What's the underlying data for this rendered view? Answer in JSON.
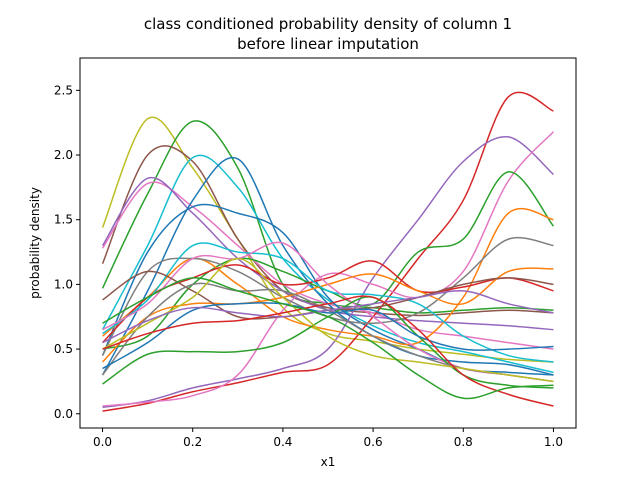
{
  "chart_data": {
    "type": "line",
    "title": [
      "class conditioned probability density of column 1",
      "before linear imputation"
    ],
    "xlabel": "x1",
    "ylabel": "probability density",
    "xlim": [
      -0.05,
      1.05
    ],
    "ylim": [
      -0.11,
      2.75
    ],
    "xticks": [
      0.0,
      0.2,
      0.4,
      0.6,
      0.8,
      1.0
    ],
    "xtick_labels": [
      "0.0",
      "0.2",
      "0.4",
      "0.6",
      "0.8",
      "1.0"
    ],
    "yticks": [
      0.0,
      0.5,
      1.0,
      1.5,
      2.0,
      2.5
    ],
    "ytick_labels": [
      "0.0",
      "0.5",
      "1.0",
      "1.5",
      "2.0",
      "2.5"
    ],
    "grid": false,
    "legend": "none",
    "x": [
      0.0,
      0.1,
      0.2,
      0.3,
      0.4,
      0.5,
      0.6,
      0.7,
      0.8,
      0.9,
      1.0
    ],
    "series": [
      {
        "color": "#bcbd22",
        "values": [
          1.44,
          2.28,
          1.9,
          1.35,
          0.82,
          0.62,
          0.56,
          0.5,
          0.46,
          0.42,
          0.4
        ]
      },
      {
        "color": "#2ca02c",
        "values": [
          0.97,
          1.7,
          2.26,
          1.9,
          1.0,
          0.85,
          0.82,
          0.78,
          0.8,
          0.82,
          0.8
        ]
      },
      {
        "color": "#8c564b",
        "values": [
          1.16,
          2.0,
          1.95,
          1.35,
          0.95,
          0.82,
          0.78,
          0.76,
          0.78,
          0.8,
          0.78
        ]
      },
      {
        "color": "#17becf",
        "values": [
          0.65,
          1.3,
          1.98,
          1.75,
          1.2,
          0.88,
          0.68,
          0.55,
          0.48,
          0.4,
          0.32
        ]
      },
      {
        "color": "#e377c2",
        "values": [
          1.28,
          1.78,
          1.6,
          1.3,
          1.0,
          0.85,
          0.78,
          0.65,
          0.6,
          0.55,
          0.5
        ]
      },
      {
        "color": "#9467bd",
        "values": [
          1.3,
          1.82,
          1.55,
          1.2,
          0.95,
          0.8,
          0.75,
          0.72,
          0.7,
          0.68,
          0.65
        ]
      },
      {
        "color": "#1f77b4",
        "values": [
          0.3,
          0.95,
          1.65,
          1.97,
          1.3,
          0.85,
          0.6,
          0.45,
          0.4,
          0.38,
          0.3
        ]
      },
      {
        "color": "#1f77b4",
        "values": [
          0.45,
          1.25,
          1.6,
          1.55,
          1.4,
          0.9,
          0.65,
          0.5,
          0.35,
          0.32,
          0.3
        ]
      },
      {
        "color": "#d62728",
        "values": [
          0.02,
          0.08,
          0.17,
          0.24,
          0.32,
          0.38,
          0.75,
          1.2,
          1.65,
          2.45,
          2.34
        ]
      },
      {
        "color": "#9467bd",
        "values": [
          0.05,
          0.1,
          0.2,
          0.27,
          0.35,
          0.5,
          1.05,
          1.5,
          1.95,
          2.14,
          1.85
        ]
      },
      {
        "color": "#e377c2",
        "values": [
          0.06,
          0.09,
          0.14,
          0.3,
          0.8,
          1.08,
          1.0,
          0.9,
          1.1,
          1.8,
          2.18
        ]
      },
      {
        "color": "#2ca02c",
        "values": [
          0.5,
          0.6,
          1.0,
          1.2,
          1.1,
          0.95,
          0.85,
          1.25,
          1.35,
          1.87,
          1.45
        ]
      },
      {
        "color": "#ff7f0e",
        "values": [
          0.6,
          0.9,
          1.2,
          1.0,
          0.75,
          0.65,
          0.6,
          0.55,
          0.9,
          1.55,
          1.5
        ]
      },
      {
        "color": "#7f7f7f",
        "values": [
          0.45,
          1.1,
          1.2,
          1.1,
          0.9,
          0.75,
          0.7,
          0.78,
          1.05,
          1.35,
          1.3
        ]
      },
      {
        "color": "#d62728",
        "values": [
          0.55,
          0.9,
          1.05,
          1.15,
          1.0,
          1.05,
          1.18,
          0.95,
          0.98,
          1.05,
          0.95
        ]
      },
      {
        "color": "#ff7f0e",
        "values": [
          0.4,
          0.75,
          0.85,
          0.85,
          0.9,
          1.0,
          1.08,
          0.95,
          0.85,
          1.1,
          1.12
        ]
      },
      {
        "color": "#17becf",
        "values": [
          0.62,
          0.88,
          1.3,
          1.25,
          1.2,
          0.95,
          0.92,
          0.85,
          0.6,
          0.45,
          0.4
        ]
      },
      {
        "color": "#e377c2",
        "values": [
          0.65,
          0.85,
          1.2,
          1.2,
          1.32,
          1.0,
          0.75,
          0.5,
          0.35,
          0.3,
          0.25
        ]
      },
      {
        "color": "#8c564b",
        "values": [
          0.88,
          1.1,
          0.95,
          0.75,
          0.75,
          0.8,
          0.82,
          0.9,
          1.0,
          1.05,
          1.0
        ]
      },
      {
        "color": "#2ca02c",
        "values": [
          0.23,
          0.46,
          0.48,
          0.48,
          0.55,
          0.75,
          0.9,
          0.6,
          0.3,
          0.22,
          0.2
        ]
      },
      {
        "color": "#7f7f7f",
        "values": [
          0.3,
          0.75,
          1.0,
          0.95,
          0.95,
          0.8,
          0.6,
          0.45,
          0.35,
          0.3,
          0.25
        ]
      },
      {
        "color": "#1f77b4",
        "values": [
          0.35,
          0.55,
          0.8,
          0.85,
          0.85,
          0.78,
          0.8,
          0.6,
          0.5,
          0.5,
          0.52
        ]
      },
      {
        "color": "#bcbd22",
        "values": [
          0.5,
          0.7,
          0.9,
          1.2,
          0.9,
          0.6,
          0.45,
          0.4,
          0.35,
          0.3,
          0.25
        ]
      },
      {
        "color": "#9467bd",
        "values": [
          0.55,
          0.72,
          0.82,
          0.78,
          0.75,
          0.8,
          0.85,
          0.9,
          0.95,
          0.85,
          0.78
        ]
      },
      {
        "color": "#d62728",
        "values": [
          0.5,
          0.62,
          0.7,
          0.72,
          0.78,
          0.85,
          0.9,
          0.65,
          0.3,
          0.15,
          0.06
        ]
      },
      {
        "color": "#2ca02c",
        "values": [
          0.7,
          0.9,
          1.05,
          0.95,
          0.85,
          0.75,
          0.55,
          0.3,
          0.12,
          0.2,
          0.22
        ]
      }
    ]
  }
}
